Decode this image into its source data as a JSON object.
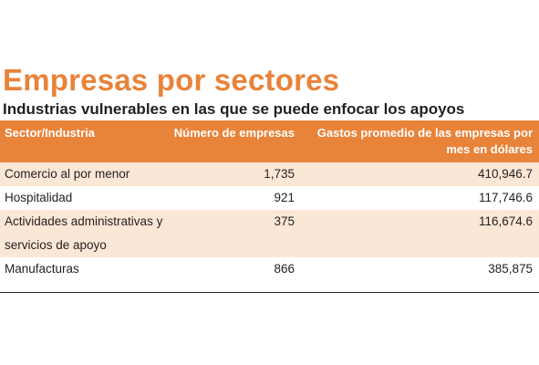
{
  "title": "Empresas por sectores",
  "subtitle": "Industrias vulnerables en las que se puede enfocar los apoyos",
  "table": {
    "headers": {
      "sector": "Sector/Industria",
      "count": "Número de empresas",
      "spend": "Gastos promedio de las empresas por mes en dólares"
    },
    "rows": [
      {
        "sector": "Comercio al por menor",
        "count": "1,735",
        "spend": "410,946.7"
      },
      {
        "sector": "Hospitalidad",
        "count": "921",
        "spend": "117,746.6"
      },
      {
        "sector": "Actividades administrativas y servicios de apoyo",
        "count": "375",
        "spend": "116,674.6"
      },
      {
        "sector": "Manufacturas",
        "count": "866",
        "spend": "385,875"
      }
    ]
  },
  "colors": {
    "accent": "#e8833a",
    "row_tint": "#fbe7d6",
    "text": "#231f20"
  }
}
